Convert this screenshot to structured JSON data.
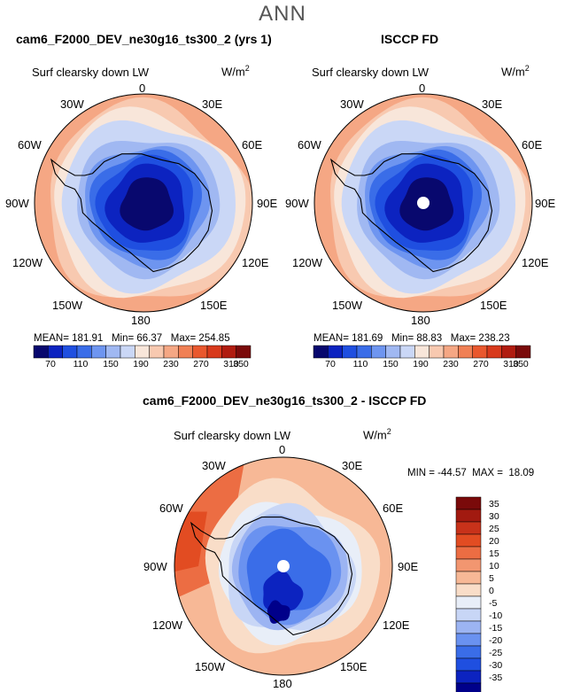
{
  "page_title": "ANN",
  "colors": {
    "sequential": [
      "#08086e",
      "#0c23c0",
      "#1f4fe0",
      "#3a6de8",
      "#6e95f0",
      "#a0b8f2",
      "#cad7f6",
      "#f8e6da",
      "#f8c9b0",
      "#f5a784",
      "#f08055",
      "#e9582e",
      "#d83a1c",
      "#b01c10",
      "#7a0a0a"
    ],
    "diverging": [
      "#00008a",
      "#0c23c0",
      "#1f4fe0",
      "#3a6de8",
      "#6a92f0",
      "#9cb4f2",
      "#c8d6f6",
      "#e8eef8",
      "#f9ddc8",
      "#f7b896",
      "#f29670",
      "#ec6d43",
      "#e24c22",
      "#c8321a",
      "#a21a10",
      "#7a0a0a"
    ]
  },
  "panels": [
    {
      "title": "cam6_F2000_DEV_ne30g16_ts300_2 (yrs 1)",
      "variable": "Surf clearsky down LW",
      "units": "W/m",
      "units_sup": "2",
      "mean_label": "MEAN=",
      "mean": "181.91",
      "min_label": "Min=",
      "min": "66.37",
      "max_label": "Max=",
      "max": "254.85"
    },
    {
      "title": "ISCCP FD",
      "variable": "Surf clearsky down LW",
      "units": "W/m",
      "units_sup": "2",
      "mean_label": "MEAN=",
      "mean": "181.69",
      "min_label": "Min=",
      "min": "88.83",
      "max_label": "Max=",
      "max": "238.23"
    },
    {
      "title": "cam6_F2000_DEV_ne30g16_ts300_2 - ISCCP FD",
      "variable": "Surf clearsky down LW",
      "units": "W/m",
      "units_sup": "2",
      "stats": "MIN = -44.57  MAX =  18.09"
    }
  ],
  "longitudes": [
    "0",
    "30E",
    "60E",
    "90E",
    "120E",
    "150E",
    "180",
    "150W",
    "120W",
    "90W",
    "60W",
    "30W"
  ],
  "colorbar_levels": [
    "70",
    "110",
    "150",
    "190",
    "230",
    "270",
    "310",
    "350"
  ],
  "diff_levels": [
    "35",
    "30",
    "25",
    "20",
    "15",
    "10",
    "5",
    "0",
    "-5",
    "-10",
    "-15",
    "-20",
    "-25",
    "-30",
    "-35"
  ]
}
